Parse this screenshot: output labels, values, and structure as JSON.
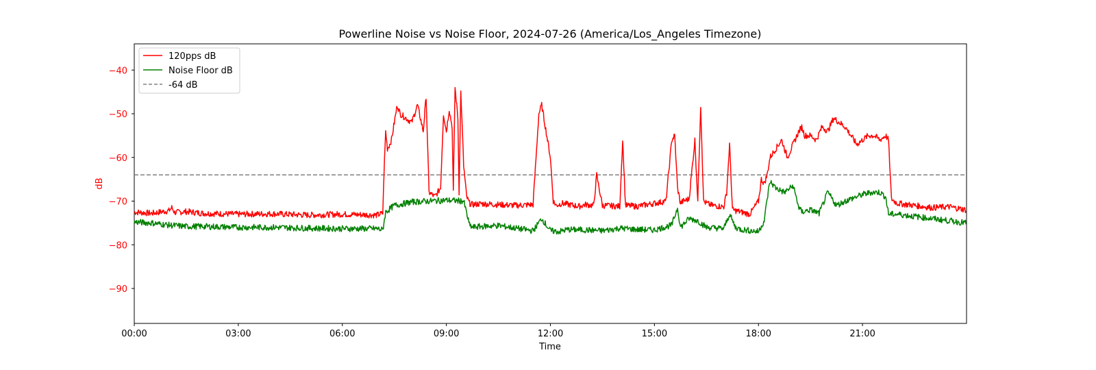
{
  "chart_data": {
    "type": "line",
    "title": "Powerline Noise vs Noise Floor, 2024-07-26 (America/Los_Angeles Timezone)",
    "xlabel": "Time",
    "ylabel": "dB",
    "xlim": [
      "00:00",
      "24:00"
    ],
    "ylim": [
      -98,
      -34
    ],
    "xticks": [
      "00:00",
      "03:00",
      "06:00",
      "09:00",
      "12:00",
      "15:00",
      "18:00",
      "21:00"
    ],
    "yticks": [
      -40,
      -50,
      -60,
      -70,
      -80,
      -90
    ],
    "grid": false,
    "legend_position": "top-left",
    "ylabel_color": "#ff0000",
    "series": [
      {
        "name": "120pps dB",
        "color": "#ff0000",
        "x": [
          "00:00",
          "00:30",
          "01:00",
          "01:05",
          "01:10",
          "01:30",
          "02:00",
          "03:00",
          "04:00",
          "05:00",
          "06:00",
          "07:00",
          "07:10",
          "07:12",
          "07:15",
          "07:18",
          "07:22",
          "07:25",
          "07:30",
          "07:35",
          "07:40",
          "07:50",
          "08:00",
          "08:10",
          "08:20",
          "08:25",
          "08:30",
          "08:40",
          "08:50",
          "08:55",
          "09:00",
          "09:05",
          "09:10",
          "09:12",
          "09:15",
          "09:20",
          "09:22",
          "09:25",
          "09:30",
          "09:35",
          "09:40",
          "09:45",
          "10:00",
          "11:00",
          "11:30",
          "11:40",
          "11:45",
          "11:50",
          "11:55",
          "12:00",
          "12:05",
          "12:10",
          "12:20",
          "12:40",
          "12:50",
          "13:00",
          "13:15",
          "13:20",
          "13:30",
          "14:00",
          "14:05",
          "14:10",
          "14:30",
          "15:00",
          "15:20",
          "15:30",
          "15:35",
          "15:40",
          "15:45",
          "15:50",
          "16:00",
          "16:10",
          "16:15",
          "16:20",
          "16:25",
          "16:30",
          "16:40",
          "17:00",
          "17:05",
          "17:10",
          "17:15",
          "17:30",
          "17:45",
          "18:00",
          "18:05",
          "18:10",
          "18:15",
          "18:20",
          "18:30",
          "18:40",
          "18:50",
          "19:00",
          "19:10",
          "19:15",
          "19:20",
          "19:30",
          "19:40",
          "19:50",
          "20:00",
          "20:10",
          "20:20",
          "20:30",
          "20:40",
          "20:50",
          "21:00",
          "21:10",
          "21:20",
          "21:30",
          "21:40",
          "21:45",
          "21:50",
          "22:00",
          "22:30",
          "23:00",
          "23:30",
          "23:59"
        ],
        "values": [
          -72.5,
          -72.8,
          -72.2,
          -71.5,
          -72.6,
          -72.4,
          -72.8,
          -73.0,
          -72.9,
          -73.2,
          -73.0,
          -73.2,
          -72.8,
          -64,
          -54,
          -58,
          -57,
          -56,
          -52,
          -48,
          -50,
          -51,
          -52,
          -48,
          -54,
          -46,
          -68,
          -69,
          -67,
          -50,
          -54,
          -49,
          -53,
          -68,
          -44,
          -51,
          -68,
          -45,
          -62,
          -69,
          -70.5,
          -70.8,
          -70.6,
          -71.0,
          -70.8,
          -50,
          -48,
          -52,
          -56,
          -60,
          -70,
          -71,
          -70.5,
          -71.0,
          -71.2,
          -70.8,
          -71.0,
          -64,
          -71.0,
          -71.2,
          -56,
          -71.0,
          -71.2,
          -70.5,
          -70.0,
          -56,
          -55,
          -67,
          -70.5,
          -70.0,
          -69.5,
          -56,
          -70,
          -48,
          -70,
          -70.5,
          -71.0,
          -71.3,
          -68,
          -57,
          -72,
          -72.5,
          -73.0,
          -70,
          -65,
          -66,
          -64,
          -60,
          -58,
          -56,
          -60,
          -57,
          -54,
          -53,
          -55,
          -55,
          -56,
          -53,
          -54,
          -51,
          -52,
          -53,
          -55,
          -57,
          -56,
          -55,
          -55,
          -56,
          -55,
          -56,
          -69.5,
          -70.5,
          -71.0,
          -71.5,
          -71.3,
          -72.0
        ]
      },
      {
        "name": "Noise Floor dB",
        "color": "#008000",
        "x": [
          "00:00",
          "00:30",
          "01:00",
          "01:30",
          "02:00",
          "03:00",
          "04:00",
          "05:00",
          "06:00",
          "07:00",
          "07:10",
          "07:15",
          "07:30",
          "08:00",
          "08:30",
          "09:00",
          "09:30",
          "09:40",
          "09:45",
          "10:00",
          "10:30",
          "11:00",
          "11:30",
          "11:45",
          "12:00",
          "12:15",
          "12:30",
          "13:00",
          "13:30",
          "14:00",
          "14:30",
          "15:00",
          "15:30",
          "15:40",
          "15:45",
          "16:00",
          "16:15",
          "16:30",
          "17:00",
          "17:10",
          "17:20",
          "17:30",
          "18:00",
          "18:10",
          "18:15",
          "18:20",
          "18:30",
          "18:45",
          "19:00",
          "19:10",
          "19:15",
          "19:30",
          "19:45",
          "20:00",
          "20:15",
          "20:30",
          "20:40",
          "21:00",
          "21:15",
          "21:30",
          "21:40",
          "21:45",
          "22:00",
          "22:30",
          "23:00",
          "23:59"
        ],
        "values": [
          -74.8,
          -75.0,
          -75.5,
          -75.8,
          -75.8,
          -76.0,
          -76.0,
          -76.2,
          -76.3,
          -76.3,
          -76.6,
          -72.5,
          -71.0,
          -70.2,
          -70.0,
          -69.8,
          -70.0,
          -75.5,
          -76.0,
          -75.8,
          -75.6,
          -76.2,
          -76.8,
          -74.0,
          -76.8,
          -77.0,
          -76.5,
          -76.6,
          -76.8,
          -76.2,
          -76.5,
          -76.6,
          -75.5,
          -71.5,
          -76.0,
          -74.0,
          -74.5,
          -76.0,
          -76.3,
          -73.0,
          -76.0,
          -76.5,
          -77.0,
          -74.5,
          -69.5,
          -65.5,
          -67.0,
          -68.0,
          -66.5,
          -71.5,
          -72.5,
          -72.0,
          -72.8,
          -68.0,
          -71.0,
          -70.0,
          -69.5,
          -68.5,
          -68.0,
          -68.0,
          -69.0,
          -73.0,
          -73.0,
          -73.5,
          -74.0,
          -75.0
        ]
      }
    ],
    "reference_lines": [
      {
        "name": "-64 dB",
        "y": -64,
        "color": "#808080",
        "style": "dashed"
      }
    ]
  }
}
